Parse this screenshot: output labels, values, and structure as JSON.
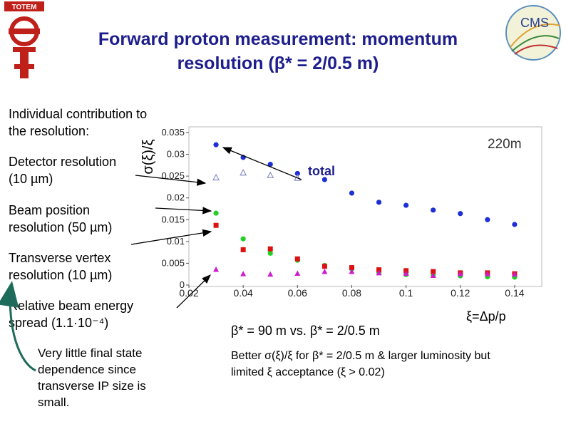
{
  "title_line1": "Forward proton measurement: momentum",
  "title_line2": "resolution (β* = 2/0.5 m)",
  "logos": {
    "left_text": "TOTEM",
    "right_text": "CMS"
  },
  "labels": {
    "individual": "Individual contribution to the resolution:",
    "detector": "Detector resolution (10 µm)",
    "beam_position": "Beam position resolution (50 µm)",
    "transverse_vertex": "Transverse vertex resolution (10 µm)",
    "beam_energy": "Relative beam energy spread (1.1·10⁻⁴)",
    "final_state": "Very little final state dependence since transverse IP size is small."
  },
  "bottom": {
    "comparison": "β* = 90 m vs. β* = 2/0.5 m",
    "xi_def": "ξ=Δp/p",
    "note_line1": "Better σ(ξ)/ξ for β* = 2/0.5 m & larger  luminosity but",
    "note_line2": "limited ξ acceptance (ξ > 0.02)"
  },
  "chart_data": {
    "type": "scatter",
    "ylabel": "σ(ξ)/ξ",
    "annotation": "220m",
    "total_label": "total",
    "xlim": [
      0.02,
      0.15
    ],
    "ylim": [
      0,
      0.035
    ],
    "xticks": [
      "0.02",
      "0.04",
      "0.06",
      "0.08",
      "0.1",
      "0.12",
      "0.14"
    ],
    "yticks": [
      "0",
      "0.005",
      "0.01",
      "0.015",
      "0.02",
      "0.025",
      "0.03",
      "0.035"
    ],
    "x": [
      0.03,
      0.04,
      0.05,
      0.06,
      0.07,
      0.08,
      0.09,
      0.1,
      0.11,
      0.12,
      0.13,
      0.14
    ],
    "series": [
      {
        "marker": "circle",
        "color": "#1f2fd6",
        "values": [
          0.0322,
          0.0293,
          0.0277,
          0.0256,
          0.0242,
          0.0211,
          0.019,
          0.0183,
          0.0172,
          0.0164,
          0.015,
          0.0139
        ]
      },
      {
        "marker": "triangle-open",
        "color": "#8a8fc8",
        "values": [
          0.0247,
          0.0258,
          0.0252,
          0.0246,
          null,
          null,
          null,
          null,
          null,
          null,
          null,
          null
        ]
      },
      {
        "marker": "circle",
        "color": "#22d022",
        "values": [
          0.0165,
          0.0106,
          0.0073,
          0.0057,
          0.0045,
          0.0037,
          0.0029,
          0.0024,
          0.0023,
          0.0021,
          0.0019,
          0.0018
        ]
      },
      {
        "marker": "square",
        "color": "#dd1111",
        "values": [
          0.0137,
          0.0081,
          0.0083,
          0.006,
          0.0043,
          0.004,
          0.0035,
          0.0033,
          0.0031,
          0.0028,
          0.0028,
          0.0026
        ]
      },
      {
        "marker": "triangle",
        "color": "#cc1ccc",
        "values": [
          0.0036,
          0.0026,
          0.0025,
          0.0027,
          0.0031,
          0.0031,
          0.0028,
          0.0027,
          0.0022,
          0.0026,
          0.0026,
          0.0025
        ]
      }
    ]
  }
}
